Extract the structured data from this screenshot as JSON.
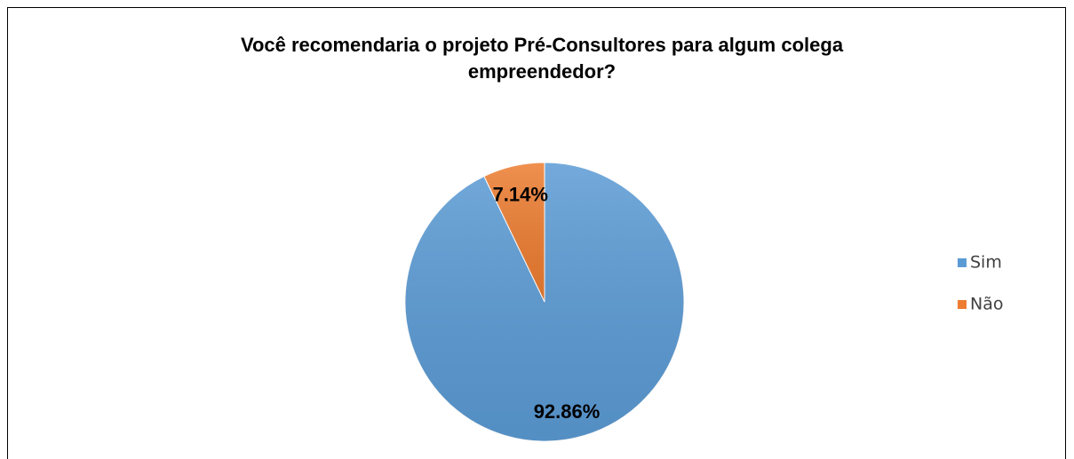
{
  "chart_data": {
    "type": "pie",
    "title": "Você recomendaria o projeto Pré-Consultores para algum colega empreendedor?",
    "categories": [
      "Sim",
      "Não"
    ],
    "values": [
      92.86,
      7.14
    ],
    "value_labels": [
      "92.86%",
      "7.14%"
    ],
    "colors": [
      "#5b9bd5",
      "#ed7d31"
    ],
    "legend": "right"
  }
}
